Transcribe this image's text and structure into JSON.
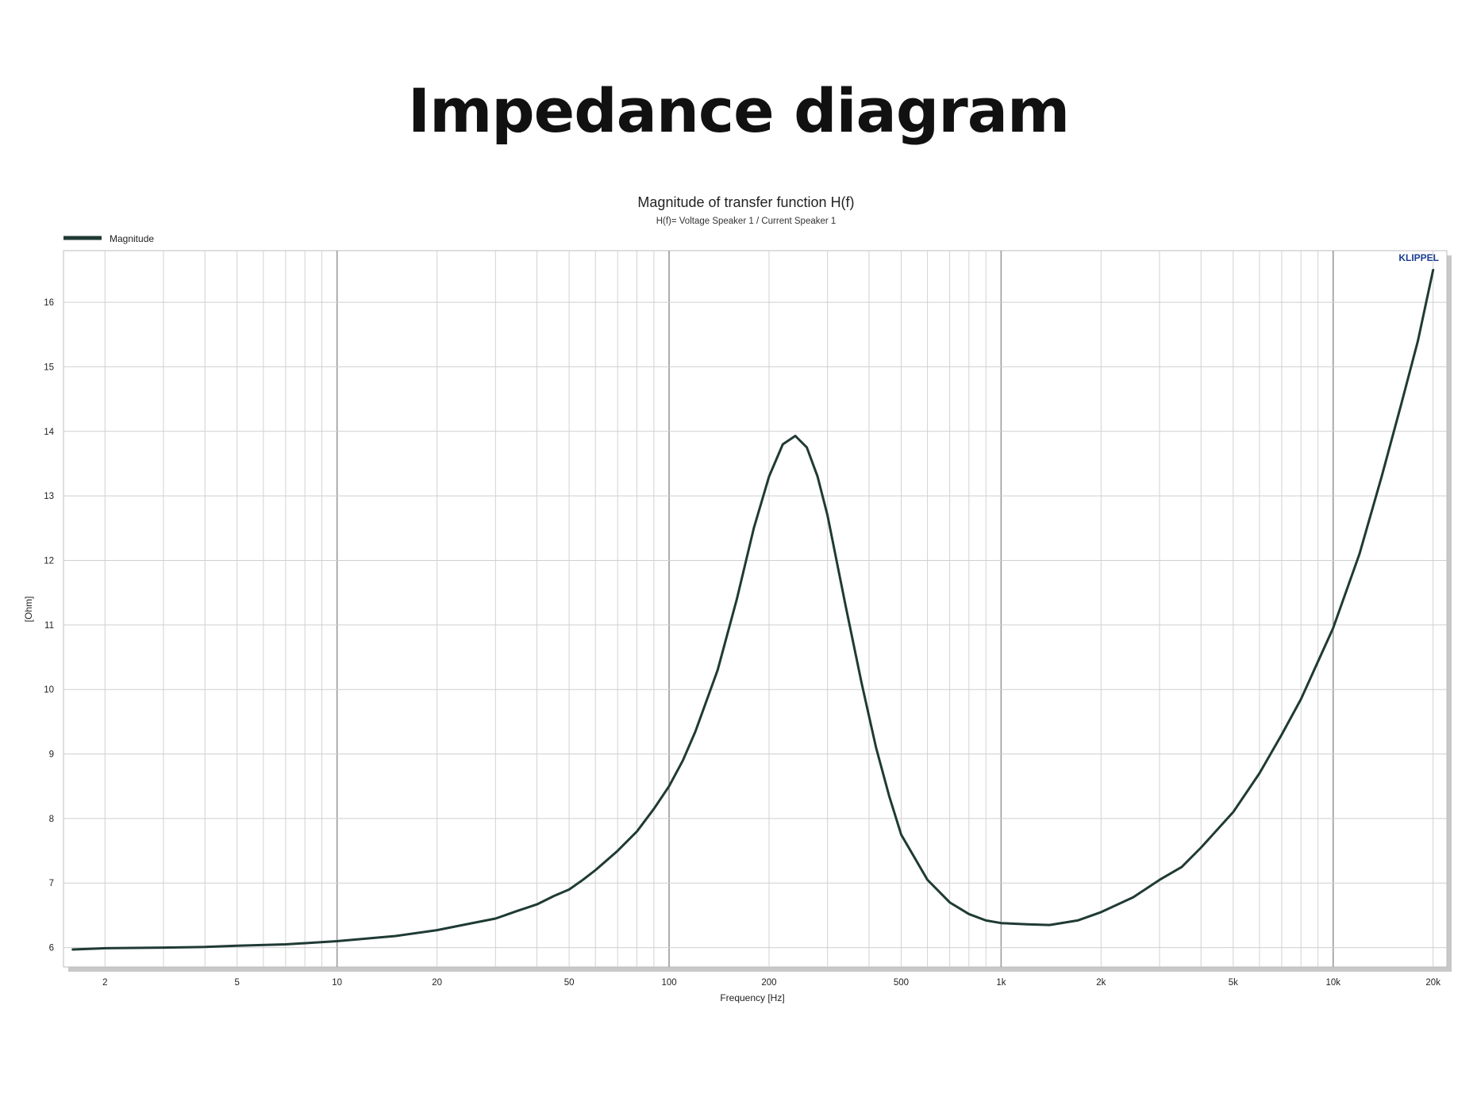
{
  "page": {
    "title": "Impedance diagram"
  },
  "chart_data": {
    "type": "line",
    "title": "Magnitude of transfer function H(f)",
    "subtitle": "H(f)= Voltage Speaker 1 / Current Speaker 1",
    "xlabel": "Frequency [Hz]",
    "ylabel": "[Ohm]",
    "x_scale": "log",
    "xlim": [
      1.5,
      22000
    ],
    "ylim": [
      5.7,
      16.8
    ],
    "xticks": [
      {
        "value": 2,
        "label": "2"
      },
      {
        "value": 5,
        "label": "5"
      },
      {
        "value": 10,
        "label": "10"
      },
      {
        "value": 20,
        "label": "20"
      },
      {
        "value": 50,
        "label": "50"
      },
      {
        "value": 100,
        "label": "100"
      },
      {
        "value": 200,
        "label": "200"
      },
      {
        "value": 500,
        "label": "500"
      },
      {
        "value": 1000,
        "label": "1k"
      },
      {
        "value": 2000,
        "label": "2k"
      },
      {
        "value": 5000,
        "label": "5k"
      },
      {
        "value": 10000,
        "label": "10k"
      },
      {
        "value": 20000,
        "label": "20k"
      }
    ],
    "yticks": [
      6,
      7,
      8,
      9,
      10,
      11,
      12,
      13,
      14,
      15,
      16
    ],
    "grid": true,
    "legend_position": "top-left",
    "brand_label": "KLIPPEL",
    "series": [
      {
        "name": "Magnitude",
        "color": "#1f3a34",
        "x": [
          1.6,
          2,
          3,
          4,
          5,
          7,
          10,
          15,
          20,
          25,
          30,
          35,
          40,
          45,
          50,
          55,
          60,
          70,
          80,
          90,
          100,
          110,
          120,
          140,
          160,
          180,
          200,
          220,
          240,
          260,
          280,
          300,
          340,
          380,
          420,
          460,
          500,
          600,
          700,
          800,
          900,
          1000,
          1200,
          1400,
          1700,
          2000,
          2500,
          3000,
          3500,
          4000,
          5000,
          6000,
          7000,
          8000,
          10000,
          12000,
          14000,
          16000,
          18000,
          20000
        ],
        "values": [
          5.97,
          5.99,
          6.0,
          6.01,
          6.03,
          6.05,
          6.1,
          6.18,
          6.27,
          6.37,
          6.45,
          6.57,
          6.67,
          6.8,
          6.9,
          7.05,
          7.2,
          7.5,
          7.8,
          8.15,
          8.5,
          8.9,
          9.35,
          10.3,
          11.4,
          12.5,
          13.3,
          13.8,
          13.93,
          13.75,
          13.3,
          12.7,
          11.3,
          10.1,
          9.1,
          8.35,
          7.75,
          7.05,
          6.7,
          6.52,
          6.42,
          6.38,
          6.36,
          6.35,
          6.42,
          6.55,
          6.78,
          7.05,
          7.25,
          7.55,
          8.1,
          8.7,
          9.3,
          9.85,
          10.95,
          12.1,
          13.3,
          14.4,
          15.4,
          16.5
        ]
      }
    ]
  }
}
